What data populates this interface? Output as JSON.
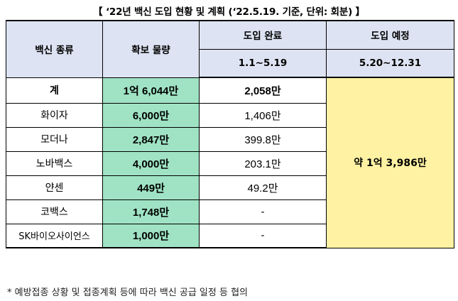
{
  "title": "【 ‘22년 백신 도입 현황 및 계획 (‘22.5.19. 기준, 단위: 회분) 】",
  "headers": {
    "vaccine_type": "백신 종류",
    "secured_amount": "확보 물량",
    "introduced_done": "도입 완료",
    "introduced_period": "1.1~5.19",
    "introduce_planned": "도입 예정",
    "planned_period": "5.20~12.31"
  },
  "rows": [
    {
      "name": "계",
      "secured": "1억 6,044만",
      "done": "2,058만"
    },
    {
      "name": "화이자",
      "secured": "6,000만",
      "done": "1,406만"
    },
    {
      "name": "모더나",
      "secured": "2,847만",
      "done": "399.8만"
    },
    {
      "name": "노바백스",
      "secured": "4,000만",
      "done": "203.1만"
    },
    {
      "name": "얀센",
      "secured": "449만",
      "done": "49.2만"
    },
    {
      "name": "코백스",
      "secured": "1,748만",
      "done": "-"
    },
    {
      "name": "SK바이오사이언스",
      "secured": "1,000만",
      "done": "-"
    }
  ],
  "planned_total": "약 1억 3,986만",
  "footnote": "* 예방접종 상황 및 접종계획 등에 따라 백신 공급 일정 등 협의"
}
